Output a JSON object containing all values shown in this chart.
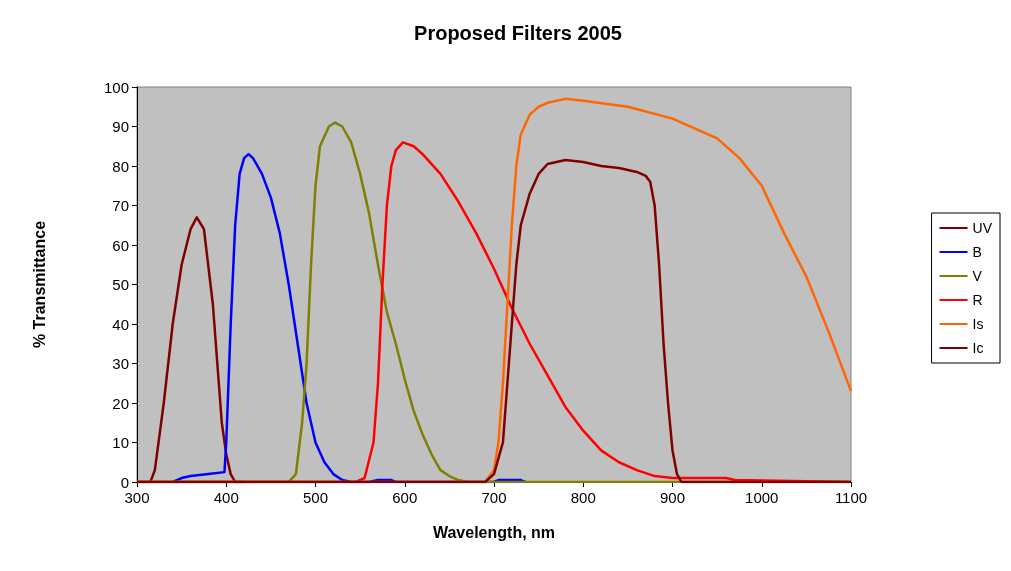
{
  "chart_data": {
    "type": "line",
    "title": "Proposed Filters 2005",
    "xlabel": "Wavelength, nm",
    "ylabel": "% Transmittance",
    "xlim": [
      300,
      1100
    ],
    "xticks": [
      300,
      400,
      500,
      600,
      700,
      800,
      900,
      1000,
      1100
    ],
    "ylim": [
      0,
      100
    ],
    "yticks": [
      0,
      10,
      20,
      30,
      40,
      50,
      60,
      70,
      80,
      90,
      100
    ],
    "grid": false,
    "legend": "right",
    "marker": "none",
    "line_style": "solid",
    "series": [
      {
        "name": "UV",
        "color": "#800000",
        "x": [
          300,
          315,
          320,
          330,
          340,
          350,
          360,
          367,
          375,
          385,
          390,
          395,
          400,
          405,
          410,
          420
        ],
        "values": [
          0,
          0,
          3,
          20,
          40,
          55,
          64,
          67,
          64,
          45,
          30,
          15,
          7,
          2,
          0,
          0
        ]
      },
      {
        "name": "B",
        "color": "#0000ff",
        "x": [
          340,
          350,
          360,
          380,
          398,
          400,
          405,
          410,
          415,
          420,
          425,
          430,
          440,
          450,
          460,
          470,
          480,
          490,
          500,
          510,
          520,
          530,
          540,
          560,
          570,
          585,
          590,
          700,
          705,
          730,
          735
        ],
        "values": [
          0,
          1,
          1.5,
          2,
          2.5,
          10,
          40,
          65,
          78,
          82,
          83,
          82,
          78,
          72,
          63,
          50,
          35,
          20,
          10,
          5,
          2,
          0.5,
          0,
          0,
          0.5,
          0.5,
          0,
          0,
          0.5,
          0.5,
          0
        ]
      },
      {
        "name": "V",
        "color": "#808000",
        "x": [
          300,
          470,
          478,
          485,
          490,
          495,
          500,
          505,
          515,
          522,
          530,
          540,
          550,
          560,
          570,
          580,
          590,
          600,
          610,
          620,
          630,
          640,
          650,
          660,
          670,
          1100
        ],
        "values": [
          0,
          0,
          2,
          15,
          30,
          55,
          75,
          85,
          90,
          91,
          90,
          86,
          78,
          68,
          55,
          43,
          35,
          26,
          18,
          12,
          7,
          3,
          1.5,
          0.5,
          0,
          0
        ]
      },
      {
        "name": "R",
        "color": "#ff0000",
        "x": [
          300,
          545,
          555,
          565,
          570,
          575,
          580,
          585,
          590,
          598,
          610,
          620,
          640,
          660,
          680,
          700,
          720,
          740,
          760,
          780,
          800,
          820,
          840,
          860,
          880,
          900,
          920,
          960,
          970,
          1100
        ],
        "values": [
          0,
          0,
          1,
          10,
          25,
          50,
          70,
          80,
          84,
          86,
          85,
          83,
          78,
          71,
          63,
          54,
          44,
          35,
          27,
          19,
          13,
          8,
          5,
          3,
          1.5,
          1,
          1,
          1,
          0.5,
          0
        ]
      },
      {
        "name": "Is",
        "color": "#ff6600",
        "x": [
          300,
          690,
          700,
          705,
          710,
          715,
          720,
          725,
          730,
          740,
          750,
          760,
          780,
          800,
          850,
          900,
          950,
          975,
          1000,
          1025,
          1050,
          1075,
          1100
        ],
        "values": [
          0,
          0,
          3,
          10,
          25,
          45,
          65,
          80,
          88,
          93,
          95,
          96,
          97,
          96.5,
          95,
          92,
          87,
          82,
          75,
          63,
          52,
          38,
          23
        ]
      },
      {
        "name": "Ic",
        "color": "#800000",
        "x": [
          300,
          690,
          700,
          710,
          715,
          720,
          725,
          730,
          740,
          750,
          760,
          780,
          800,
          820,
          840,
          860,
          870,
          875,
          880,
          885,
          890,
          895,
          900,
          905,
          910,
          1100
        ],
        "values": [
          0,
          0,
          2,
          10,
          25,
          40,
          55,
          65,
          73,
          78,
          80.5,
          81.5,
          81,
          80,
          79.5,
          78.5,
          77.5,
          76,
          70,
          55,
          35,
          20,
          8,
          2,
          0,
          0
        ]
      }
    ]
  }
}
